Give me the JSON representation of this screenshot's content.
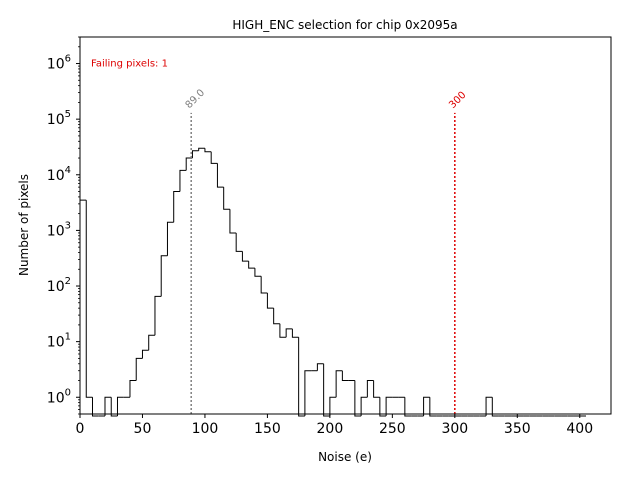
{
  "chart_data": {
    "type": "histogram",
    "title": "HIGH_ENC selection for chip 0x2095a",
    "xlabel": "Noise (e)",
    "ylabel": "Number of pixels",
    "xlim": [
      0,
      425
    ],
    "ylim": [
      0.5,
      3000000
    ],
    "yscale": "log",
    "x_ticks": [
      0,
      50,
      100,
      150,
      200,
      250,
      300,
      350,
      400
    ],
    "x_tick_labels": [
      "0",
      "50",
      "100",
      "150",
      "200",
      "250",
      "300",
      "350",
      "400"
    ],
    "y_ticks": [
      1,
      10,
      100,
      1000,
      10000,
      100000,
      1000000
    ],
    "y_tick_exponents": [
      "0",
      "1",
      "2",
      "3",
      "4",
      "5",
      "6"
    ],
    "y_tick_base": "10",
    "bin_width": 5,
    "bin_start": 0,
    "counts": [
      3500,
      1,
      0,
      0,
      1,
      0,
      1,
      1,
      2,
      5,
      7,
      13,
      65,
      350,
      1400,
      5000,
      12000,
      20000,
      27000,
      30000,
      26000,
      16000,
      6000,
      2400,
      900,
      420,
      280,
      210,
      150,
      75,
      40,
      21,
      12,
      17,
      12,
      0,
      3,
      3,
      4,
      0,
      1,
      3,
      2,
      2,
      0,
      1,
      2,
      1,
      0,
      1,
      1,
      1,
      0,
      0,
      0,
      1,
      0,
      0,
      0,
      0,
      0,
      0,
      0,
      0,
      0,
      1,
      0,
      0,
      0,
      0,
      0,
      0,
      0,
      0,
      0,
      0,
      0,
      0,
      0,
      0,
      0
    ],
    "annotation": "Failing pixels: 1",
    "vlines": [
      {
        "x": 89,
        "label": "89.0",
        "color": "#808080"
      },
      {
        "x": 300,
        "label": "300",
        "color": "#dd0000"
      }
    ],
    "annotation_color": "#dd0000",
    "line_color": "#000000",
    "grid": false
  }
}
